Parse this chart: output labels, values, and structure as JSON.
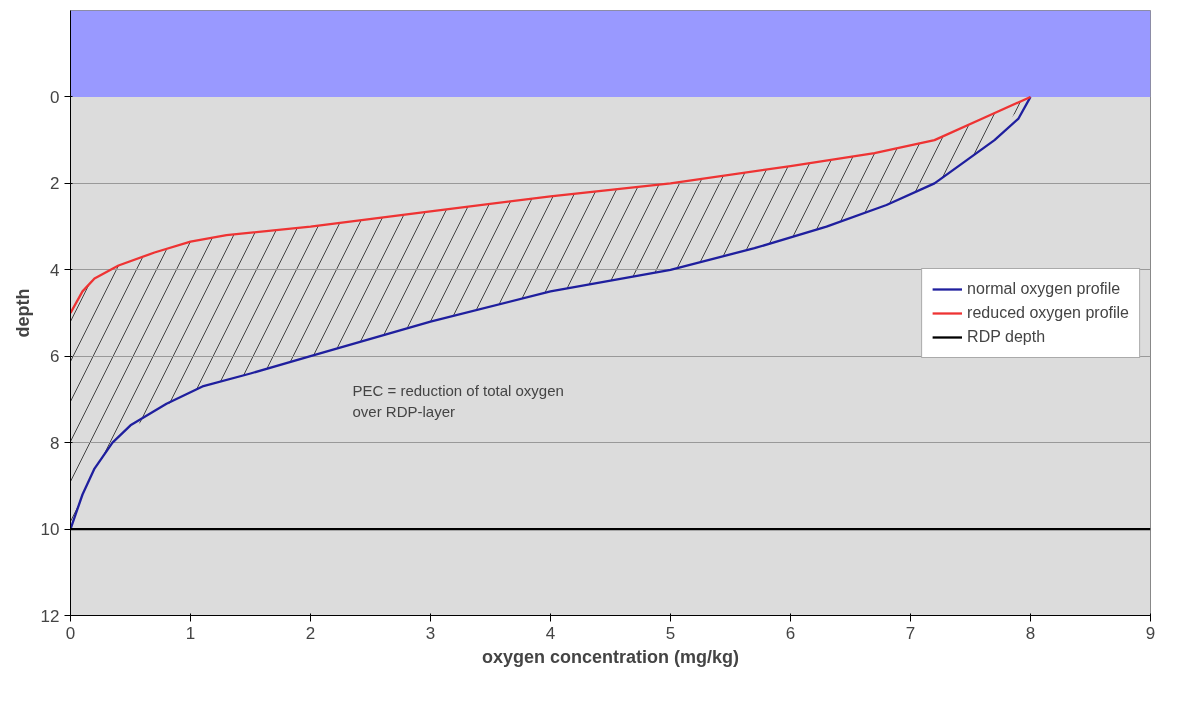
{
  "chart_data": {
    "type": "line",
    "xlabel": "oxygen concentration (mg/kg)",
    "ylabel": "depth",
    "xlim": [
      0,
      9
    ],
    "xticks": [
      0,
      1,
      2,
      3,
      4,
      5,
      6,
      7,
      8,
      9
    ],
    "ylim": [
      12,
      -2
    ],
    "yticks": [
      0,
      2,
      4,
      6,
      8,
      10,
      12
    ],
    "grid": "y",
    "legend": "right",
    "marker": "none",
    "line_style": "solid",
    "series": [
      {
        "name": "normal oxygen profile",
        "color": "#1f1f9e",
        "x": [
          0,
          0.1,
          0.2,
          0.35,
          0.5,
          0.8,
          1.1,
          1.5,
          2,
          3,
          4,
          5,
          5.7,
          6.3,
          6.8,
          7.2,
          7.4,
          7.7,
          7.9,
          8
        ],
        "values": [
          10,
          9.2,
          8.6,
          8,
          7.6,
          7.1,
          6.7,
          6.4,
          6,
          5.2,
          4.5,
          4,
          3.5,
          3,
          2.5,
          2,
          1.6,
          1,
          0.5,
          0
        ]
      },
      {
        "name": "reduced oxygen profile",
        "color": "#ee3333",
        "x": [
          0,
          0.1,
          0.2,
          0.4,
          0.7,
          1,
          1.3,
          2,
          3,
          4,
          5,
          6,
          6.7,
          7.2,
          7.6,
          8
        ],
        "values": [
          5,
          4.5,
          4.2,
          3.9,
          3.6,
          3.35,
          3.2,
          3,
          2.65,
          2.3,
          2,
          1.6,
          1.3,
          1,
          0.5,
          0
        ],
        "lower": [
          5,
          4.5,
          4.2,
          3.9,
          3.6,
          3.35,
          3.2,
          3,
          2.65,
          2.3,
          2,
          1.6,
          1.3,
          1,
          0.5,
          0
        ],
        "upper": [
          10,
          9.2,
          8.6,
          7.9,
          7.3,
          6.8,
          6.55,
          6,
          5.2,
          4.5,
          4,
          3.25,
          2.6,
          2,
          1.2,
          0
        ]
      },
      {
        "name": "RDP depth",
        "color": "#000000",
        "x": [
          0,
          9
        ],
        "values": [
          10,
          10
        ]
      }
    ],
    "bands": [
      {
        "axis": "y",
        "from": -2,
        "to": 0,
        "color": "#9999ff"
      }
    ],
    "annotations": [
      "PEC = reduction of  total oxygen\nover RDP-layer"
    ]
  }
}
